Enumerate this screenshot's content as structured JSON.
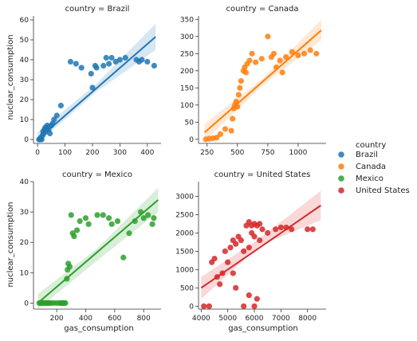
{
  "chart_data": {
    "type": "scatter",
    "hue_variable": "country",
    "xlabel": "gas_consumption",
    "ylabel": "nuclear_consumption",
    "facet_variable": "country",
    "legend": {
      "title": "country",
      "placement": "right",
      "entries": [
        "Brazil",
        "Canada",
        "Mexico",
        "United States"
      ]
    },
    "colors": {
      "Brazil": "#1f77b4",
      "Canada": "#ff7f0e",
      "Mexico": "#2ca02c",
      "United States": "#d62728"
    },
    "panels": [
      {
        "title": "country = Brazil",
        "series": "Brazil",
        "xlim": [
          -15,
          450
        ],
        "ylim": [
          -2,
          62
        ],
        "xticks": [
          0,
          100,
          200,
          300,
          400
        ],
        "yticks": [
          0,
          10,
          20,
          30,
          40,
          50,
          60
        ],
        "x": [
          5,
          8,
          10,
          12,
          15,
          18,
          20,
          22,
          25,
          28,
          30,
          32,
          35,
          38,
          40,
          45,
          50,
          55,
          60,
          70,
          85,
          120,
          140,
          160,
          195,
          200,
          210,
          215,
          240,
          250,
          260,
          270,
          285,
          300,
          320,
          360,
          370,
          380,
          400,
          425
        ],
        "y": [
          0,
          0,
          0,
          1,
          0,
          2,
          4,
          3,
          5,
          6,
          4,
          5,
          7,
          6,
          5,
          3,
          7,
          8,
          10,
          12,
          17,
          39,
          38,
          36,
          33,
          26,
          37,
          36,
          37,
          41,
          38,
          41,
          39,
          40,
          41,
          40,
          39,
          40,
          39,
          37
        ],
        "fit": [
          [
            0,
            0
          ],
          [
            430,
            51.5
          ]
        ],
        "ci_low": [
          [
            0,
            -2
          ],
          [
            215,
            24
          ],
          [
            430,
            45
          ]
        ],
        "ci_high": [
          [
            0,
            3.5
          ],
          [
            215,
            28
          ],
          [
            430,
            58
          ]
        ]
      },
      {
        "title": "country = Canada",
        "series": "Canada",
        "xlim": [
          180,
          1230
        ],
        "ylim": [
          -12,
          360
        ],
        "xticks": [
          250,
          500,
          750,
          1000
        ],
        "yticks": [
          0,
          50,
          100,
          150,
          200,
          250,
          300,
          350
        ],
        "x": [
          240,
          270,
          300,
          330,
          360,
          400,
          450,
          460,
          470,
          480,
          490,
          500,
          510,
          520,
          530,
          550,
          560,
          570,
          580,
          600,
          620,
          650,
          700,
          750,
          780,
          800,
          820,
          850,
          870,
          900,
          950,
          1000,
          1050,
          1100,
          1150
        ],
        "y": [
          0,
          2,
          3,
          5,
          15,
          30,
          25,
          60,
          90,
          100,
          110,
          95,
          130,
          150,
          170,
          200,
          210,
          195,
          220,
          230,
          250,
          225,
          235,
          300,
          240,
          250,
          210,
          230,
          195,
          240,
          255,
          245,
          250,
          260,
          250
        ],
        "fit": [
          [
            230,
            20
          ],
          [
            1190,
            318
          ]
        ],
        "ci_low": [
          [
            230,
            -5
          ],
          [
            700,
            155
          ],
          [
            1190,
            290
          ]
        ],
        "ci_high": [
          [
            230,
            45
          ],
          [
            700,
            175
          ],
          [
            1190,
            348
          ]
        ]
      },
      {
        "title": "country = Mexico",
        "series": "Mexico",
        "xlim": [
          40,
          920
        ],
        "ylim": [
          -2,
          40
        ],
        "xticks": [
          200,
          400,
          600,
          800
        ],
        "yticks": [
          0,
          10,
          20,
          30,
          40
        ],
        "x": [
          80,
          90,
          100,
          110,
          120,
          130,
          140,
          150,
          160,
          180,
          200,
          220,
          230,
          240,
          250,
          260,
          270,
          275,
          280,
          290,
          300,
          310,
          320,
          340,
          360,
          400,
          420,
          480,
          520,
          560,
          580,
          620,
          660,
          700,
          740,
          780,
          800,
          830,
          860,
          870
        ],
        "y": [
          0,
          0,
          0,
          0,
          0,
          0,
          0,
          0,
          0,
          0,
          0,
          0,
          0,
          0,
          0,
          0,
          8,
          11,
          13,
          12,
          29,
          23,
          22,
          24,
          27,
          28,
          26,
          29,
          29,
          28,
          26,
          27,
          15,
          23,
          27,
          30,
          28,
          29,
          26,
          28
        ],
        "fit": [
          [
            70,
            0
          ],
          [
            900,
            34
          ]
        ],
        "ci_low": [
          [
            70,
            -2
          ],
          [
            480,
            14
          ],
          [
            900,
            30
          ]
        ],
        "ci_high": [
          [
            70,
            3
          ],
          [
            480,
            18
          ],
          [
            900,
            38
          ]
        ]
      },
      {
        "title": "country = United States",
        "series": "United States",
        "xlim": [
          3900,
          8700
        ],
        "ylim": [
          -80,
          3400
        ],
        "xticks": [
          4000,
          5000,
          6000,
          7000,
          8000
        ],
        "yticks": [
          0,
          500,
          1000,
          1500,
          2000,
          2500,
          3000
        ],
        "x": [
          4100,
          4300,
          4400,
          4500,
          4600,
          4700,
          4800,
          4900,
          5000,
          5100,
          5200,
          5300,
          5400,
          5500,
          5600,
          5700,
          5800,
          5900,
          6000,
          6100,
          6200,
          6300,
          6500,
          6800,
          7000,
          7200,
          7400,
          8000,
          8200,
          5200,
          5300,
          5600,
          5800,
          6000,
          6100,
          5800,
          5900,
          6000,
          6200
        ],
        "y": [
          0,
          0,
          1200,
          1300,
          800,
          600,
          900,
          1500,
          1200,
          1600,
          1800,
          1700,
          1900,
          1800,
          1500,
          2200,
          2300,
          2200,
          2250,
          2200,
          2250,
          2100,
          2000,
          2100,
          2150,
          2150,
          2100,
          2100,
          2100,
          900,
          500,
          0,
          300,
          0,
          200,
          1600,
          2000,
          1900,
          1800
        ],
        "fit": [
          [
            4000,
            500
          ],
          [
            8500,
            2750
          ]
        ],
        "ci_low": [
          [
            4000,
            200
          ],
          [
            6200,
            1650
          ],
          [
            8500,
            2350
          ]
        ],
        "ci_high": [
          [
            4000,
            800
          ],
          [
            6200,
            1850
          ],
          [
            8500,
            3150
          ]
        ]
      }
    ]
  }
}
